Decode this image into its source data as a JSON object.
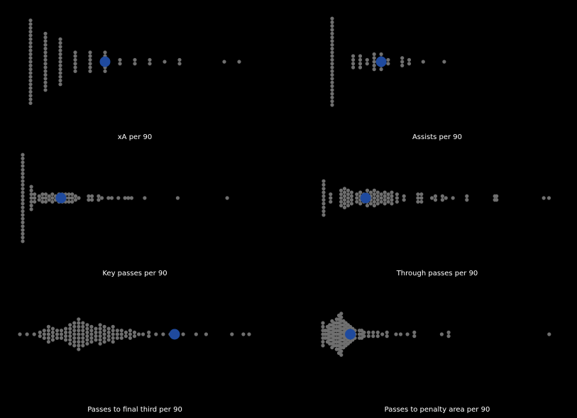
{
  "style": {
    "background": "#000000",
    "dot_color": "#6f6f6f",
    "highlight_color": "#1f4a9e",
    "label_color": "#ffffff"
  },
  "chart_data": [
    {
      "type": "scatter",
      "xlabel": "xA per 90",
      "axis_visible": false,
      "grid": false,
      "xlim": [
        0,
        0.7
      ],
      "columns": [
        {
          "x": 0.0,
          "count": 23
        },
        {
          "x": 0.05,
          "count": 16
        },
        {
          "x": 0.1,
          "count": 13
        },
        {
          "x": 0.15,
          "count": 6
        },
        {
          "x": 0.2,
          "count": 6
        },
        {
          "x": 0.25,
          "count": 6
        },
        {
          "x": 0.3,
          "count": 2
        },
        {
          "x": 0.35,
          "count": 2
        },
        {
          "x": 0.4,
          "count": 2
        },
        {
          "x": 0.45,
          "count": 1
        },
        {
          "x": 0.5,
          "count": 2
        },
        {
          "x": 0.65,
          "count": 1
        },
        {
          "x": 0.7,
          "count": 1
        }
      ],
      "highlight": {
        "x": 0.25
      }
    },
    {
      "type": "scatter",
      "xlabel": "Assists per 90",
      "axis_visible": false,
      "grid": false,
      "xlim": [
        0,
        0.3
      ],
      "columns": [
        {
          "x": 0.0,
          "count": 24
        },
        {
          "x": 0.03,
          "count": 4
        },
        {
          "x": 0.04,
          "count": 4
        },
        {
          "x": 0.05,
          "count": 2
        },
        {
          "x": 0.06,
          "count": 5
        },
        {
          "x": 0.07,
          "count": 5
        },
        {
          "x": 0.08,
          "count": 2
        },
        {
          "x": 0.1,
          "count": 3
        },
        {
          "x": 0.11,
          "count": 2
        },
        {
          "x": 0.13,
          "count": 1
        },
        {
          "x": 0.16,
          "count": 1
        }
      ],
      "highlight": {
        "x": 0.07
      }
    },
    {
      "type": "scatter",
      "xlabel": "Key passes per 90",
      "axis_visible": false,
      "grid": false,
      "xlim": [
        0,
        3.4
      ],
      "columns": [
        {
          "x": 0.0,
          "count": 24
        },
        {
          "x": 0.13,
          "count": 7
        },
        {
          "x": 0.18,
          "count": 3
        },
        {
          "x": 0.25,
          "count": 2
        },
        {
          "x": 0.3,
          "count": 3
        },
        {
          "x": 0.35,
          "count": 3
        },
        {
          "x": 0.4,
          "count": 2
        },
        {
          "x": 0.45,
          "count": 3
        },
        {
          "x": 0.5,
          "count": 2
        },
        {
          "x": 0.55,
          "count": 3
        },
        {
          "x": 0.6,
          "count": 3
        },
        {
          "x": 0.65,
          "count": 3
        },
        {
          "x": 0.7,
          "count": 3
        },
        {
          "x": 0.75,
          "count": 3
        },
        {
          "x": 0.8,
          "count": 2
        },
        {
          "x": 0.85,
          "count": 1
        },
        {
          "x": 1.0,
          "count": 2
        },
        {
          "x": 1.05,
          "count": 2
        },
        {
          "x": 1.15,
          "count": 2
        },
        {
          "x": 1.2,
          "count": 1
        },
        {
          "x": 1.3,
          "count": 1
        },
        {
          "x": 1.35,
          "count": 1
        },
        {
          "x": 1.45,
          "count": 1
        },
        {
          "x": 1.55,
          "count": 1
        },
        {
          "x": 1.6,
          "count": 1
        },
        {
          "x": 1.65,
          "count": 1
        },
        {
          "x": 1.85,
          "count": 1
        },
        {
          "x": 2.35,
          "count": 1
        },
        {
          "x": 3.1,
          "count": 1
        }
      ],
      "highlight": {
        "x": 0.58
      }
    },
    {
      "type": "scatter",
      "xlabel": "Through passes per 90",
      "axis_visible": false,
      "grid": false,
      "xlim": [
        0,
        0.65
      ],
      "columns": [
        {
          "x": 0.0,
          "count": 10
        },
        {
          "x": 0.02,
          "count": 3
        },
        {
          "x": 0.05,
          "count": 5
        },
        {
          "x": 0.06,
          "count": 6
        },
        {
          "x": 0.07,
          "count": 5
        },
        {
          "x": 0.08,
          "count": 4
        },
        {
          "x": 0.095,
          "count": 3
        },
        {
          "x": 0.105,
          "count": 4
        },
        {
          "x": 0.115,
          "count": 3
        },
        {
          "x": 0.125,
          "count": 5
        },
        {
          "x": 0.135,
          "count": 4
        },
        {
          "x": 0.145,
          "count": 5
        },
        {
          "x": 0.155,
          "count": 4
        },
        {
          "x": 0.165,
          "count": 3
        },
        {
          "x": 0.175,
          "count": 4
        },
        {
          "x": 0.185,
          "count": 3
        },
        {
          "x": 0.195,
          "count": 4
        },
        {
          "x": 0.21,
          "count": 3
        },
        {
          "x": 0.23,
          "count": 2
        },
        {
          "x": 0.27,
          "count": 3
        },
        {
          "x": 0.28,
          "count": 3
        },
        {
          "x": 0.31,
          "count": 1
        },
        {
          "x": 0.32,
          "count": 2
        },
        {
          "x": 0.34,
          "count": 2
        },
        {
          "x": 0.35,
          "count": 1
        },
        {
          "x": 0.37,
          "count": 1
        },
        {
          "x": 0.41,
          "count": 2
        },
        {
          "x": 0.49,
          "count": 2
        },
        {
          "x": 0.495,
          "count": 2
        },
        {
          "x": 0.63,
          "count": 1
        },
        {
          "x": 0.645,
          "count": 1
        }
      ],
      "highlight": {
        "x": 0.12
      }
    },
    {
      "type": "scatter",
      "xlabel": "Passes to final third per 90",
      "axis_visible": false,
      "grid": false,
      "xlim": [
        0,
        16
      ],
      "columns": [
        {
          "x": 0.0,
          "count": 1
        },
        {
          "x": 0.5,
          "count": 1
        },
        {
          "x": 1.0,
          "count": 1
        },
        {
          "x": 1.4,
          "count": 2
        },
        {
          "x": 1.7,
          "count": 3
        },
        {
          "x": 2.0,
          "count": 5
        },
        {
          "x": 2.3,
          "count": 4
        },
        {
          "x": 2.6,
          "count": 3
        },
        {
          "x": 2.9,
          "count": 3
        },
        {
          "x": 3.2,
          "count": 4
        },
        {
          "x": 3.5,
          "count": 6
        },
        {
          "x": 3.8,
          "count": 7
        },
        {
          "x": 4.1,
          "count": 9
        },
        {
          "x": 4.4,
          "count": 7
        },
        {
          "x": 4.7,
          "count": 6
        },
        {
          "x": 5.0,
          "count": 5
        },
        {
          "x": 5.3,
          "count": 4
        },
        {
          "x": 5.6,
          "count": 6
        },
        {
          "x": 5.9,
          "count": 5
        },
        {
          "x": 6.2,
          "count": 4
        },
        {
          "x": 6.5,
          "count": 5
        },
        {
          "x": 6.8,
          "count": 3
        },
        {
          "x": 7.1,
          "count": 3
        },
        {
          "x": 7.4,
          "count": 2
        },
        {
          "x": 7.7,
          "count": 3
        },
        {
          "x": 8.0,
          "count": 2
        },
        {
          "x": 8.3,
          "count": 1
        },
        {
          "x": 8.6,
          "count": 1
        },
        {
          "x": 9.0,
          "count": 2
        },
        {
          "x": 9.5,
          "count": 1
        },
        {
          "x": 10.0,
          "count": 1
        },
        {
          "x": 10.5,
          "count": 1
        },
        {
          "x": 11.4,
          "count": 1
        },
        {
          "x": 12.3,
          "count": 1
        },
        {
          "x": 13.0,
          "count": 1
        },
        {
          "x": 14.8,
          "count": 1
        },
        {
          "x": 15.6,
          "count": 1
        },
        {
          "x": 16.0,
          "count": 1
        }
      ],
      "highlight": {
        "x": 10.8
      }
    },
    {
      "type": "scatter",
      "xlabel": "Passes to penalty area per 90",
      "axis_visible": false,
      "grid": false,
      "xlim": [
        0,
        5.0
      ],
      "columns": [
        {
          "x": 0.0,
          "count": 7
        },
        {
          "x": 0.05,
          "count": 3
        },
        {
          "x": 0.1,
          "count": 5
        },
        {
          "x": 0.15,
          "count": 6
        },
        {
          "x": 0.2,
          "count": 8
        },
        {
          "x": 0.25,
          "count": 7
        },
        {
          "x": 0.3,
          "count": 9
        },
        {
          "x": 0.35,
          "count": 11
        },
        {
          "x": 0.4,
          "count": 12
        },
        {
          "x": 0.45,
          "count": 8
        },
        {
          "x": 0.5,
          "count": 7
        },
        {
          "x": 0.55,
          "count": 6
        },
        {
          "x": 0.6,
          "count": 5
        },
        {
          "x": 0.65,
          "count": 4
        },
        {
          "x": 0.7,
          "count": 3
        },
        {
          "x": 0.8,
          "count": 3
        },
        {
          "x": 0.85,
          "count": 3
        },
        {
          "x": 0.9,
          "count": 2
        },
        {
          "x": 1.0,
          "count": 2
        },
        {
          "x": 1.1,
          "count": 2
        },
        {
          "x": 1.2,
          "count": 2
        },
        {
          "x": 1.3,
          "count": 1
        },
        {
          "x": 1.4,
          "count": 2
        },
        {
          "x": 1.6,
          "count": 1
        },
        {
          "x": 1.7,
          "count": 1
        },
        {
          "x": 1.85,
          "count": 1
        },
        {
          "x": 2.0,
          "count": 2
        },
        {
          "x": 2.6,
          "count": 1
        },
        {
          "x": 2.75,
          "count": 2
        },
        {
          "x": 4.95,
          "count": 1
        }
      ],
      "highlight": {
        "x": 0.6
      }
    }
  ]
}
